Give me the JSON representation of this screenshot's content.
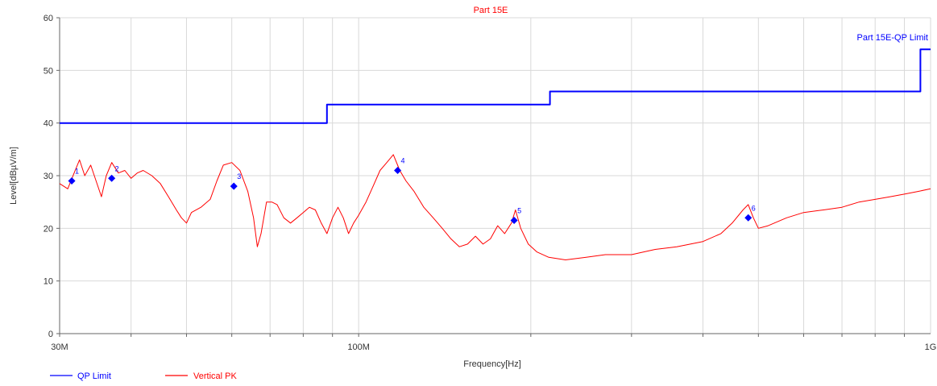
{
  "chart_data": {
    "type": "line",
    "title": "Part 15E",
    "xlabel": "Frequency[Hz]",
    "ylabel": "Level[dBµV/m]",
    "x_scale": "log",
    "xlim": [
      30000000,
      1000000000
    ],
    "ylim": [
      0,
      60
    ],
    "grid": true,
    "x_tick_labels": [
      {
        "value": 30000000,
        "label": "30M"
      },
      {
        "value": 100000000,
        "label": "100M"
      },
      {
        "value": 1000000000,
        "label": "1G"
      }
    ],
    "y_ticks": [
      0,
      10,
      20,
      30,
      40,
      50,
      60
    ],
    "series": [
      {
        "name": "QP Limit",
        "annotation": "Part 15E-QP Limit",
        "color": "#0000ff",
        "step": true,
        "points": [
          [
            30000000,
            40
          ],
          [
            88000000,
            40
          ],
          [
            88000000,
            43.5
          ],
          [
            216000000,
            43.5
          ],
          [
            216000000,
            46
          ],
          [
            960000000,
            46
          ],
          [
            960000000,
            54
          ],
          [
            1000000000,
            54
          ]
        ]
      },
      {
        "name": "Vertical PK",
        "color": "#ff0000",
        "points": [
          [
            30000000,
            28.5
          ],
          [
            31000000,
            27.5
          ],
          [
            31800000,
            30.5
          ],
          [
            32500000,
            33
          ],
          [
            33200000,
            30
          ],
          [
            34000000,
            32
          ],
          [
            35000000,
            28
          ],
          [
            35500000,
            26
          ],
          [
            36200000,
            30
          ],
          [
            37000000,
            32.5
          ],
          [
            38000000,
            30.5
          ],
          [
            39000000,
            31
          ],
          [
            40000000,
            29.5
          ],
          [
            41000000,
            30.5
          ],
          [
            42000000,
            31
          ],
          [
            43500000,
            30
          ],
          [
            45000000,
            28.5
          ],
          [
            46500000,
            26
          ],
          [
            48000000,
            23.5
          ],
          [
            49000000,
            22
          ],
          [
            50000000,
            21
          ],
          [
            51000000,
            23
          ],
          [
            53000000,
            24
          ],
          [
            55000000,
            25.5
          ],
          [
            56500000,
            29
          ],
          [
            58000000,
            32
          ],
          [
            60000000,
            32.5
          ],
          [
            62000000,
            31
          ],
          [
            64000000,
            27
          ],
          [
            65500000,
            22
          ],
          [
            66500000,
            16.5
          ],
          [
            67500000,
            19
          ],
          [
            69000000,
            25
          ],
          [
            70500000,
            25
          ],
          [
            72000000,
            24.5
          ],
          [
            74000000,
            22
          ],
          [
            76000000,
            21
          ],
          [
            78000000,
            22
          ],
          [
            80000000,
            23
          ],
          [
            82000000,
            24
          ],
          [
            84000000,
            23.5
          ],
          [
            86000000,
            21
          ],
          [
            88000000,
            19
          ],
          [
            90000000,
            22
          ],
          [
            92000000,
            24
          ],
          [
            94000000,
            22
          ],
          [
            96000000,
            19
          ],
          [
            98000000,
            21
          ],
          [
            100000000,
            22.5
          ],
          [
            103000000,
            25
          ],
          [
            106000000,
            28
          ],
          [
            109000000,
            31
          ],
          [
            112000000,
            32.5
          ],
          [
            115000000,
            34
          ],
          [
            118000000,
            31
          ],
          [
            121000000,
            29
          ],
          [
            125000000,
            27
          ],
          [
            130000000,
            24
          ],
          [
            135000000,
            22
          ],
          [
            140000000,
            20
          ],
          [
            145000000,
            18
          ],
          [
            150000000,
            16.5
          ],
          [
            155000000,
            17
          ],
          [
            160000000,
            18.5
          ],
          [
            165000000,
            17
          ],
          [
            170000000,
            18
          ],
          [
            175000000,
            20.5
          ],
          [
            180000000,
            19
          ],
          [
            185000000,
            21
          ],
          [
            188000000,
            23.5
          ],
          [
            192000000,
            20
          ],
          [
            198000000,
            17
          ],
          [
            205000000,
            15.5
          ],
          [
            215000000,
            14.5
          ],
          [
            230000000,
            14
          ],
          [
            250000000,
            14.5
          ],
          [
            270000000,
            15
          ],
          [
            300000000,
            15
          ],
          [
            330000000,
            16
          ],
          [
            360000000,
            16.5
          ],
          [
            400000000,
            17.5
          ],
          [
            430000000,
            19
          ],
          [
            450000000,
            21
          ],
          [
            470000000,
            23.5
          ],
          [
            480000000,
            24.5
          ],
          [
            490000000,
            22
          ],
          [
            500000000,
            20
          ],
          [
            520000000,
            20.5
          ],
          [
            560000000,
            22
          ],
          [
            600000000,
            23
          ],
          [
            650000000,
            23.5
          ],
          [
            700000000,
            24
          ],
          [
            750000000,
            25
          ],
          [
            800000000,
            25.5
          ],
          [
            850000000,
            26
          ],
          [
            900000000,
            26.5
          ],
          [
            950000000,
            27
          ],
          [
            1000000000,
            27.5
          ]
        ]
      }
    ],
    "markers": [
      {
        "label": "1",
        "x": 31500000,
        "y": 29
      },
      {
        "label": "2",
        "x": 37000000,
        "y": 29.5
      },
      {
        "label": "3",
        "x": 60500000,
        "y": 28
      },
      {
        "label": "4",
        "x": 117000000,
        "y": 31
      },
      {
        "label": "5",
        "x": 187000000,
        "y": 21.5
      },
      {
        "label": "6",
        "x": 480000000,
        "y": 22
      }
    ],
    "legend": [
      {
        "label": "QP Limit",
        "color": "#0000ff"
      },
      {
        "label": "Vertical PK",
        "color": "#ff0000"
      }
    ],
    "legend_position": "bottom-left"
  }
}
